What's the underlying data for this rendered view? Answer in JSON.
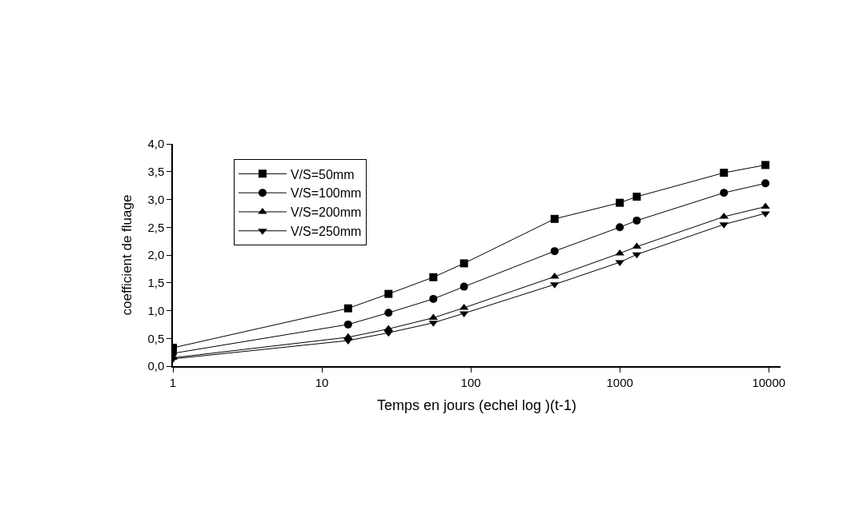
{
  "chart_data": {
    "type": "line",
    "xlabel": "Temps en jours (echel log )(t-1)",
    "ylabel": "coefficient de fluage",
    "x": [
      1,
      15,
      28,
      56,
      90,
      365,
      1000,
      1300,
      5000,
      9500
    ],
    "series": [
      {
        "name": "V/S=50mm",
        "color": "#000000",
        "marker": "square",
        "values": [
          0.33,
          1.04,
          1.3,
          1.6,
          1.85,
          2.65,
          2.94,
          3.05,
          3.48,
          3.62
        ]
      },
      {
        "name": "V/S=100mm",
        "color": "#000000",
        "marker": "circle",
        "values": [
          0.23,
          0.75,
          0.96,
          1.21,
          1.43,
          2.07,
          2.5,
          2.62,
          3.12,
          3.29
        ]
      },
      {
        "name": "V/S=200mm",
        "color": "#000000",
        "marker": "triangle",
        "values": [
          0.15,
          0.52,
          0.67,
          0.87,
          1.05,
          1.61,
          2.03,
          2.15,
          2.69,
          2.87
        ]
      },
      {
        "name": "V/S=250mm",
        "color": "#000000",
        "marker": "triangle-down",
        "values": [
          0.13,
          0.46,
          0.6,
          0.78,
          0.95,
          1.47,
          1.87,
          2.01,
          2.55,
          2.75
        ]
      }
    ],
    "log": "x",
    "xlim": [
      1,
      12000
    ],
    "xticks": [
      1,
      10,
      100,
      1000,
      10000
    ],
    "ylim": [
      0,
      4
    ],
    "yticks": [
      {
        "value": 0,
        "label": "0,0"
      },
      {
        "value": 0.5,
        "label": "0,5"
      },
      {
        "value": 1,
        "label": "1,0"
      },
      {
        "value": 1.5,
        "label": "1,5"
      },
      {
        "value": 2,
        "label": "2,0"
      },
      {
        "value": 2.5,
        "label": "2,5"
      },
      {
        "value": 3,
        "label": "3,0"
      },
      {
        "value": 3.5,
        "label": "3,5"
      },
      {
        "value": 4,
        "label": "4,0"
      }
    ],
    "legend": "top left",
    "line_style": "solid"
  }
}
